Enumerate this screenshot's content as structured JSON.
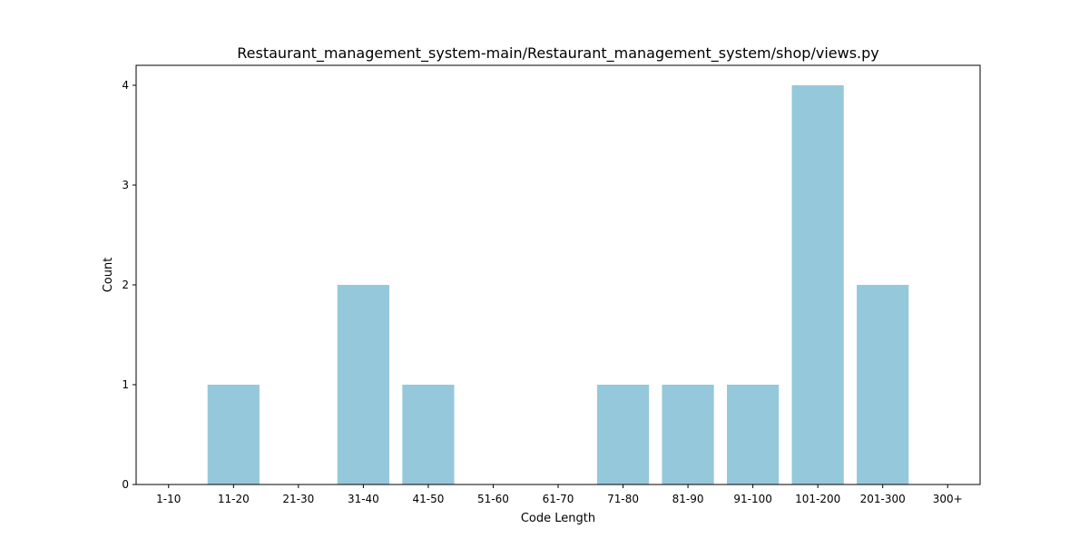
{
  "chart_data": {
    "type": "bar",
    "title": "Restaurant_management_system-main/Restaurant_management_system/shop/views.py",
    "xlabel": "Code Length",
    "ylabel": "Count",
    "categories": [
      "1-10",
      "11-20",
      "21-30",
      "31-40",
      "41-50",
      "51-60",
      "61-70",
      "71-80",
      "81-90",
      "91-100",
      "101-200",
      "201-300",
      "300+"
    ],
    "values": [
      0,
      1,
      0,
      2,
      1,
      0,
      0,
      1,
      1,
      1,
      4,
      2,
      0
    ],
    "ylim": [
      0,
      4.2
    ],
    "yticks": [
      0,
      1,
      2,
      3,
      4
    ],
    "bar_color": "#96c8dc",
    "grid": false,
    "legend": "none"
  }
}
